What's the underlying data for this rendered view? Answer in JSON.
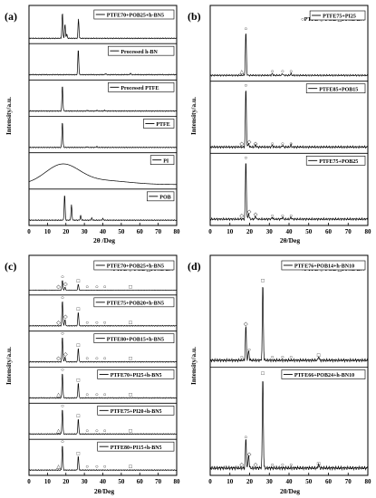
{
  "chart_data": [
    {
      "id": "a",
      "panel_label": "(a)",
      "type": "line",
      "xlabel": "2θ /Deg",
      "ylabel": "Intensity/a.u.",
      "xlim": [
        0,
        80
      ],
      "xticks": [
        0,
        10,
        20,
        30,
        40,
        50,
        60,
        70,
        80
      ],
      "series": [
        {
          "name": "PTFE70+POB25+h-BN5",
          "peaks": [
            [
              18.1,
              1.0
            ],
            [
              19.5,
              0.55
            ],
            [
              26.8,
              0.75
            ],
            [
              20.5,
              0.15
            ]
          ]
        },
        {
          "name": "Processed h-BN",
          "peaks": [
            [
              26.7,
              1.0
            ],
            [
              41.6,
              0.04
            ],
            [
              55.0,
              0.05
            ]
          ]
        },
        {
          "name": "Processed PTFE",
          "peaks": [
            [
              18.1,
              1.0
            ],
            [
              31.5,
              0.03
            ],
            [
              36.7,
              0.03
            ],
            [
              41.0,
              0.03
            ]
          ]
        },
        {
          "name": "PTFE",
          "peaks": [
            [
              18.1,
              1.0
            ],
            [
              31.5,
              0.03
            ],
            [
              36.7,
              0.03
            ]
          ]
        },
        {
          "name": "PI",
          "peaks": []
        },
        {
          "name": "POB",
          "peaks": [
            [
              19.3,
              1.0
            ],
            [
              23.0,
              0.6
            ],
            [
              28.0,
              0.18
            ],
            [
              34.0,
              0.08
            ],
            [
              40.0,
              0.06
            ]
          ]
        }
      ]
    },
    {
      "id": "b",
      "panel_label": "(b)",
      "type": "line",
      "xlabel": "2θ/Deg",
      "ylabel": "Intensity/a.u.",
      "xlim": [
        0,
        80
      ],
      "xticks": [
        0,
        10,
        20,
        30,
        40,
        50,
        60,
        70,
        80
      ],
      "marker_legend": "○PTFE  ◇ POB  △PI  □h-BN",
      "series": [
        {
          "name": "PTFE75+PI25",
          "peaks": [
            [
              18.1,
              1.0
            ],
            [
              31.5,
              0.04
            ],
            [
              36.7,
              0.04
            ],
            [
              41.0,
              0.04
            ]
          ]
        },
        {
          "name": "PTFE85+POB15",
          "peaks": [
            [
              18.1,
              1.0
            ],
            [
              19.5,
              0.06
            ],
            [
              23.0,
              0.03
            ],
            [
              31.5,
              0.03
            ],
            [
              36.7,
              0.03
            ],
            [
              41.0,
              0.03
            ]
          ]
        },
        {
          "name": "PTFE75+POB25",
          "peaks": [
            [
              18.1,
              1.0
            ],
            [
              19.5,
              0.1
            ],
            [
              23.0,
              0.05
            ],
            [
              31.5,
              0.03
            ],
            [
              36.7,
              0.03
            ],
            [
              41.0,
              0.03
            ]
          ]
        }
      ]
    },
    {
      "id": "c",
      "panel_label": "(c)",
      "type": "line",
      "xlabel": "2θ/Deg",
      "ylabel": "Intensity/a.u.",
      "xlim": [
        0,
        80
      ],
      "xticks": [
        0,
        10,
        20,
        30,
        40,
        50,
        60,
        70,
        80
      ],
      "marker_legend": "○PTFE  ◇ POB  △PI  □h-BN",
      "series": [
        {
          "name": "PTFE70+POB25+h-BN5",
          "peaks": [
            [
              18.1,
              1.0
            ],
            [
              19.5,
              0.3
            ],
            [
              26.7,
              0.6
            ]
          ]
        },
        {
          "name": "PTFE75+POB20+h-BN5",
          "peaks": [
            [
              18.1,
              1.0
            ],
            [
              19.5,
              0.25
            ],
            [
              26.7,
              0.55
            ]
          ]
        },
        {
          "name": "PTFE80+POB15+h-BN5",
          "peaks": [
            [
              18.1,
              1.0
            ],
            [
              19.5,
              0.2
            ],
            [
              26.7,
              0.55
            ]
          ]
        },
        {
          "name": "PTFE70+PI25+h-BN5",
          "peaks": [
            [
              18.1,
              1.0
            ],
            [
              26.7,
              0.6
            ]
          ]
        },
        {
          "name": "PTFE75+PI20+h-BN5",
          "peaks": [
            [
              18.1,
              1.0
            ],
            [
              26.7,
              0.6
            ]
          ]
        },
        {
          "name": "PTFE80+PI15+h-BN5",
          "peaks": [
            [
              18.1,
              1.0
            ],
            [
              26.7,
              0.55
            ]
          ]
        }
      ]
    },
    {
      "id": "d",
      "panel_label": "(d)",
      "type": "line",
      "xlabel": "20/Deg",
      "ylabel": "Intensity/a.u.",
      "xlim": [
        0,
        80
      ],
      "xticks": [
        0,
        10,
        20,
        30,
        40,
        50,
        60,
        70,
        80
      ],
      "marker_legend": "○PTFE  ◇ POB  △PI  □h-BN",
      "series": [
        {
          "name": "PTFE76+POB14+h-BN10",
          "peaks": [
            [
              18.1,
              0.45
            ],
            [
              19.5,
              0.12
            ],
            [
              26.7,
              1.0
            ],
            [
              55.0,
              0.05
            ]
          ]
        },
        {
          "name": "PTFE66+POB24+h-BN10",
          "peaks": [
            [
              18.1,
              0.32
            ],
            [
              19.5,
              0.14
            ],
            [
              26.7,
              1.0
            ],
            [
              55.0,
              0.04
            ]
          ]
        }
      ]
    }
  ]
}
